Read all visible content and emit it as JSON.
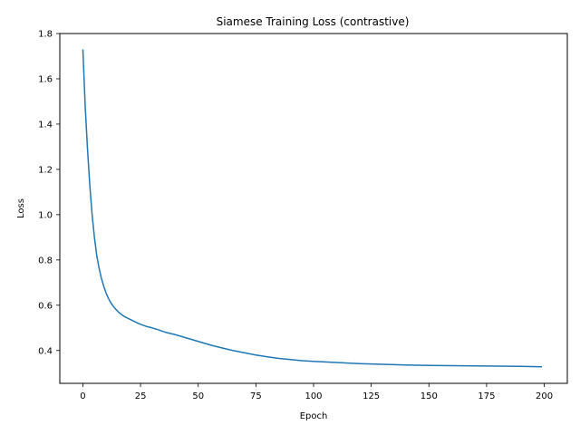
{
  "chart_data": {
    "type": "line",
    "title": "Siamese Training Loss (contrastive)",
    "xlabel": "Epoch",
    "ylabel": "Loss",
    "xlim": [
      -10,
      210
    ],
    "ylim": [
      0.255,
      1.8
    ],
    "xticks": [
      0,
      25,
      50,
      75,
      100,
      125,
      150,
      175,
      200
    ],
    "yticks": [
      0.4,
      0.6,
      0.8,
      1.0,
      1.2,
      1.4,
      1.6,
      1.8
    ],
    "ytick_labels": [
      "0.4",
      "0.6",
      "0.8",
      "1.0",
      "1.2",
      "1.4",
      "1.6",
      "1.8"
    ],
    "grid": false,
    "series": [
      {
        "color": "#1f77b4",
        "x": [
          0,
          1,
          2,
          3,
          4,
          5,
          6,
          7,
          8,
          9,
          10,
          11,
          12,
          13,
          14,
          15,
          16,
          17,
          18,
          19,
          20,
          22,
          24,
          26,
          28,
          30,
          32,
          34,
          36,
          38,
          40,
          45,
          50,
          55,
          60,
          65,
          70,
          75,
          80,
          85,
          90,
          95,
          100,
          110,
          120,
          130,
          140,
          150,
          160,
          170,
          180,
          190,
          199
        ],
        "y": [
          1.73,
          1.48,
          1.29,
          1.13,
          1.0,
          0.9,
          0.82,
          0.765,
          0.72,
          0.685,
          0.655,
          0.632,
          0.613,
          0.598,
          0.585,
          0.574,
          0.565,
          0.557,
          0.55,
          0.545,
          0.54,
          0.53,
          0.52,
          0.512,
          0.505,
          0.5,
          0.494,
          0.487,
          0.48,
          0.475,
          0.47,
          0.455,
          0.44,
          0.425,
          0.412,
          0.4,
          0.39,
          0.38,
          0.372,
          0.365,
          0.36,
          0.355,
          0.352,
          0.347,
          0.342,
          0.339,
          0.336,
          0.334,
          0.333,
          0.332,
          0.331,
          0.33,
          0.328
        ]
      }
    ]
  }
}
